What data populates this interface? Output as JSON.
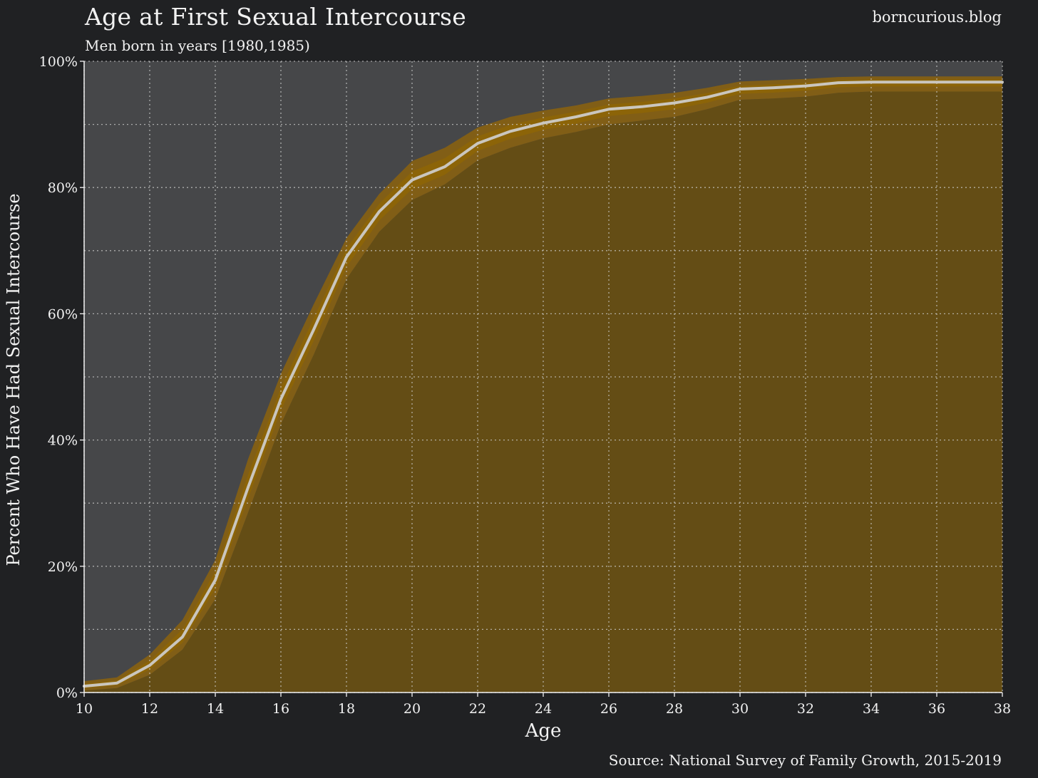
{
  "chart_data": {
    "type": "area",
    "title": "Age at First Sexual Intercourse",
    "subtitle": "Men born in years [1980,1985)",
    "watermark": "borncurious.blog",
    "source": "Source: National Survey of Family Growth, 2015-2019",
    "xlabel": "Age",
    "ylabel": "Percent Who Have Had Sexual Intercourse",
    "xlim": [
      10,
      38
    ],
    "ylim": [
      0,
      100
    ],
    "x_ticks": [
      10,
      12,
      14,
      16,
      18,
      20,
      22,
      24,
      26,
      28,
      30,
      32,
      34,
      36,
      38
    ],
    "x_tick_labels": [
      "10",
      "12",
      "14",
      "16",
      "18",
      "20",
      "22",
      "24",
      "26",
      "28",
      "30",
      "32",
      "34",
      "36",
      "38"
    ],
    "y_ticks": [
      0,
      20,
      40,
      60,
      80,
      100
    ],
    "y_tick_labels": [
      "0%",
      "20%",
      "40%",
      "60%",
      "80%",
      "100%"
    ],
    "y_minor_ticks": [
      10,
      30,
      50,
      70,
      90
    ],
    "grid": true,
    "x": [
      10,
      11,
      12,
      13,
      14,
      15,
      16,
      17,
      18,
      19,
      20,
      21,
      22,
      23,
      24,
      25,
      26,
      27,
      28,
      29,
      30,
      31,
      32,
      33,
      34,
      35,
      36,
      37,
      38
    ],
    "series": [
      {
        "role": "estimate",
        "values": [
          1.0,
          1.5,
          4.3,
          8.8,
          17.8,
          32.5,
          46.5,
          57.5,
          69.0,
          76.2,
          81.2,
          83.3,
          87.0,
          88.9,
          90.2,
          91.2,
          92.4,
          92.8,
          93.4,
          94.3,
          95.6,
          95.8,
          96.1,
          96.6,
          96.7,
          96.7,
          96.7,
          96.7,
          96.7
        ]
      },
      {
        "role": "upper",
        "values": [
          1.8,
          2.4,
          6.0,
          11.5,
          21.0,
          37.0,
          50.5,
          61.5,
          72.0,
          79.0,
          84.2,
          86.3,
          89.5,
          91.2,
          92.2,
          93.0,
          94.1,
          94.5,
          95.0,
          95.8,
          96.8,
          97.0,
          97.2,
          97.5,
          97.6,
          97.6,
          97.6,
          97.6,
          97.6
        ]
      },
      {
        "role": "lower",
        "values": [
          0.3,
          0.7,
          2.8,
          6.8,
          14.8,
          28.5,
          42.5,
          53.5,
          65.5,
          73.0,
          78.0,
          80.5,
          84.3,
          86.3,
          87.8,
          88.8,
          90.0,
          90.6,
          91.2,
          92.4,
          93.9,
          94.1,
          94.4,
          95.0,
          95.2,
          95.2,
          95.2,
          95.2,
          95.2
        ]
      }
    ],
    "colors": {
      "background": "#202123",
      "plot_background": "#464749",
      "fill": "#644d15",
      "band_outer": "#815e16",
      "band_inner": "#8c6408",
      "line": "#cac6be",
      "grid": "#cfcfcf",
      "text": "#f2f2f2"
    }
  }
}
